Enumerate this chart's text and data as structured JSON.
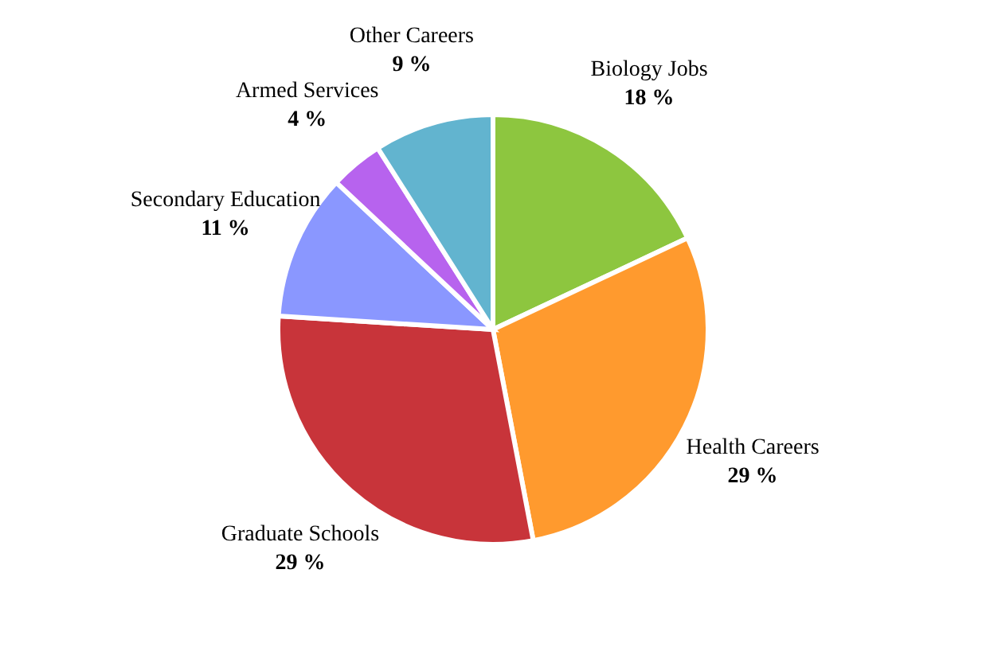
{
  "chart_data": {
    "type": "pie",
    "categories": [
      "Biology Jobs",
      "Health Careers",
      "Graduate Schools",
      "Secondary Education",
      "Armed Services",
      "Other Careers"
    ],
    "values": [
      18,
      29,
      29,
      11,
      4,
      9
    ],
    "colors": [
      "#8dc63f",
      "#ff9a2e",
      "#c8343a",
      "#8a97ff",
      "#b763ee",
      "#62b4cf"
    ],
    "value_labels": [
      "18 %",
      "29 %",
      "29 %",
      "11 %",
      "4 %",
      "9 %"
    ],
    "legend": false
  }
}
